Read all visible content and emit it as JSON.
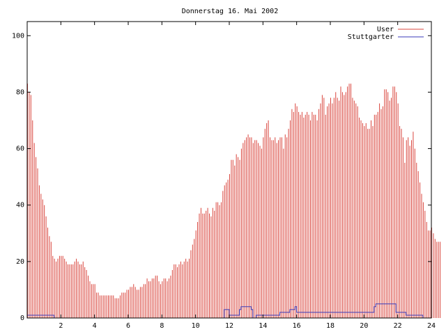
{
  "chart_data": {
    "type": "bar",
    "title": "Donnerstag 16. Mai 2002",
    "xlabel": "",
    "ylabel": "",
    "xlim": [
      0,
      24
    ],
    "ylim": [
      0,
      105
    ],
    "x_ticks": [
      2,
      4,
      6,
      8,
      10,
      12,
      14,
      16,
      18,
      20,
      22,
      24
    ],
    "y_ticks": [
      0,
      20,
      40,
      60,
      80,
      100
    ],
    "grid": false,
    "legend_position": "top-right",
    "series": [
      {
        "name": "User",
        "style": "impulses",
        "color": "#d9443c",
        "x_start": 0,
        "x_step": 0.1,
        "values": [
          83,
          80,
          79,
          70,
          62,
          57,
          53,
          47,
          44,
          42,
          40,
          36,
          32,
          29,
          27,
          22,
          21,
          20,
          21,
          22,
          22,
          22,
          21,
          20,
          19,
          19,
          19,
          19,
          20,
          21,
          20,
          19,
          19,
          20,
          18,
          17,
          15,
          13,
          12,
          12,
          12,
          9,
          9,
          8,
          8,
          8,
          8,
          8,
          8,
          8,
          8,
          8,
          7,
          7,
          7,
          8,
          9,
          9,
          9,
          10,
          10,
          11,
          11,
          12,
          11,
          10,
          10,
          11,
          11,
          12,
          12,
          14,
          13,
          13,
          14,
          14,
          15,
          15,
          13,
          12,
          13,
          14,
          14,
          13,
          14,
          15,
          17,
          19,
          19,
          18,
          19,
          20,
          19,
          20,
          21,
          20,
          21,
          24,
          26,
          28,
          31,
          34,
          37,
          39,
          37,
          37,
          38,
          39,
          37,
          36,
          39,
          38,
          41,
          41,
          40,
          41,
          45,
          47,
          48,
          49,
          51,
          56,
          56,
          54,
          58,
          57,
          56,
          60,
          62,
          63,
          64,
          65,
          64,
          64,
          62,
          63,
          63,
          62,
          61,
          60,
          64,
          67,
          69,
          70,
          64,
          63,
          63,
          64,
          62,
          63,
          64,
          64,
          60,
          65,
          64,
          67,
          70,
          74,
          73,
          76,
          75,
          73,
          72,
          73,
          71,
          72,
          73,
          72,
          70,
          73,
          72,
          72,
          70,
          74,
          76,
          79,
          78,
          72,
          75,
          76,
          78,
          76,
          78,
          80,
          78,
          77,
          82,
          80,
          79,
          80,
          82,
          83,
          83,
          78,
          77,
          76,
          75,
          71,
          70,
          69,
          68,
          69,
          67,
          67,
          70,
          68,
          72,
          72,
          73,
          76,
          74,
          75,
          81,
          81,
          80,
          77,
          78,
          82,
          82,
          80,
          76,
          68,
          67,
          64,
          55,
          63,
          64,
          61,
          63,
          66,
          60,
          55,
          52,
          48,
          44,
          41,
          38,
          34,
          31,
          31,
          32,
          30,
          28,
          27,
          27,
          27
        ]
      },
      {
        "name": "Stuttgarter",
        "style": "steps",
        "color": "#3a3ab8",
        "x": [
          0,
          1.5,
          1.6,
          11.4,
          11.7,
          11.9,
          12.0,
          12.4,
          12.6,
          12.7,
          13.0,
          13.1,
          13.3,
          13.4,
          13.6,
          14.6,
          15.0,
          15.6,
          15.8,
          15.9,
          16.0,
          16.2,
          17.0,
          19.0,
          20.5,
          20.6,
          20.7,
          21.6,
          21.9,
          22.5,
          23.5,
          24.0
        ],
        "values": [
          1,
          1,
          0,
          0,
          3,
          3,
          1,
          1,
          3,
          4,
          4,
          4,
          3,
          0,
          1,
          1,
          2,
          3,
          3,
          4,
          2,
          2,
          2,
          2,
          2,
          4,
          5,
          5,
          2,
          1,
          0,
          1
        ]
      }
    ]
  }
}
